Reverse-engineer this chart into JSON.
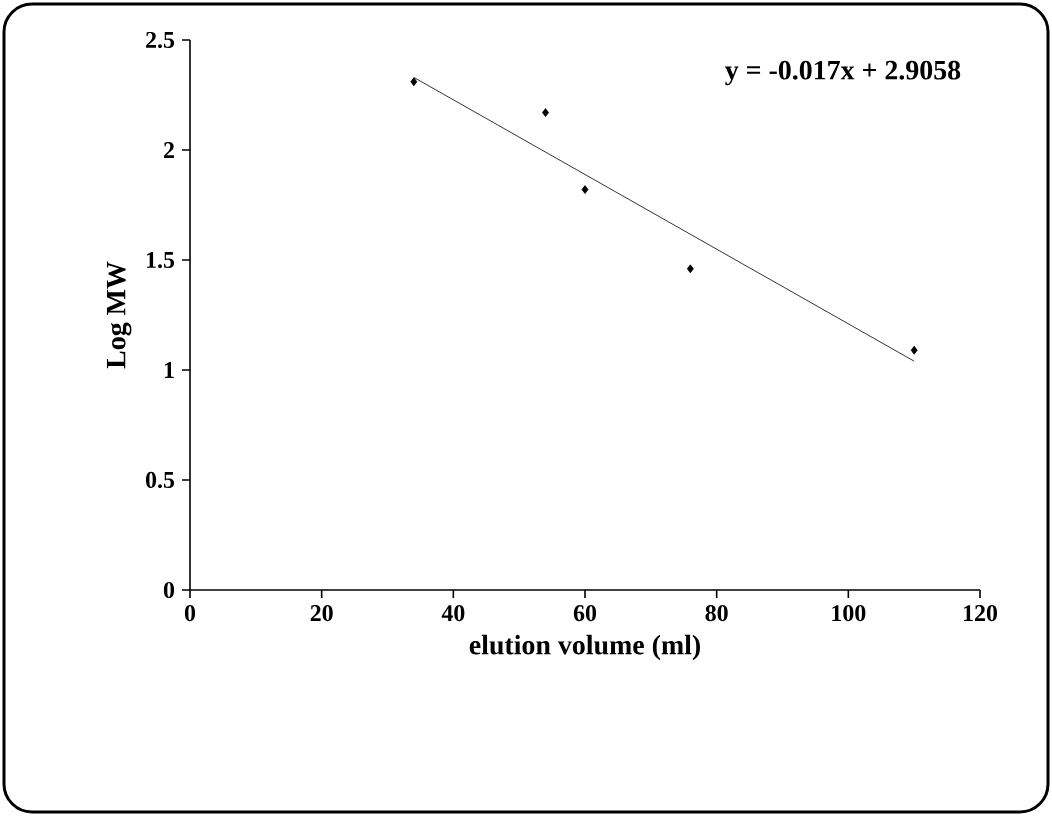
{
  "chart_data": {
    "type": "scatter",
    "xlabel": "elution volume (ml)",
    "ylabel": "Log MW",
    "annotations": [
      "y = -0.017x + 2.9058"
    ],
    "xlim": [
      0,
      120
    ],
    "ylim": [
      0,
      2.5
    ],
    "xticks": [
      0,
      20,
      40,
      60,
      80,
      100,
      120
    ],
    "yticks": [
      0,
      0.5,
      1,
      1.5,
      2,
      2.5
    ],
    "grid": false,
    "marker": "diamond",
    "series": [
      {
        "color": "#000000",
        "x": [
          34,
          54,
          60,
          76,
          110
        ],
        "values": [
          2.31,
          2.17,
          1.82,
          1.46,
          1.09
        ]
      },
      {
        "type": "line",
        "color": "#000000",
        "line_style": "solid",
        "marker": "none",
        "x": [
          34,
          110
        ],
        "values": [
          2.33,
          1.04
        ]
      }
    ]
  }
}
